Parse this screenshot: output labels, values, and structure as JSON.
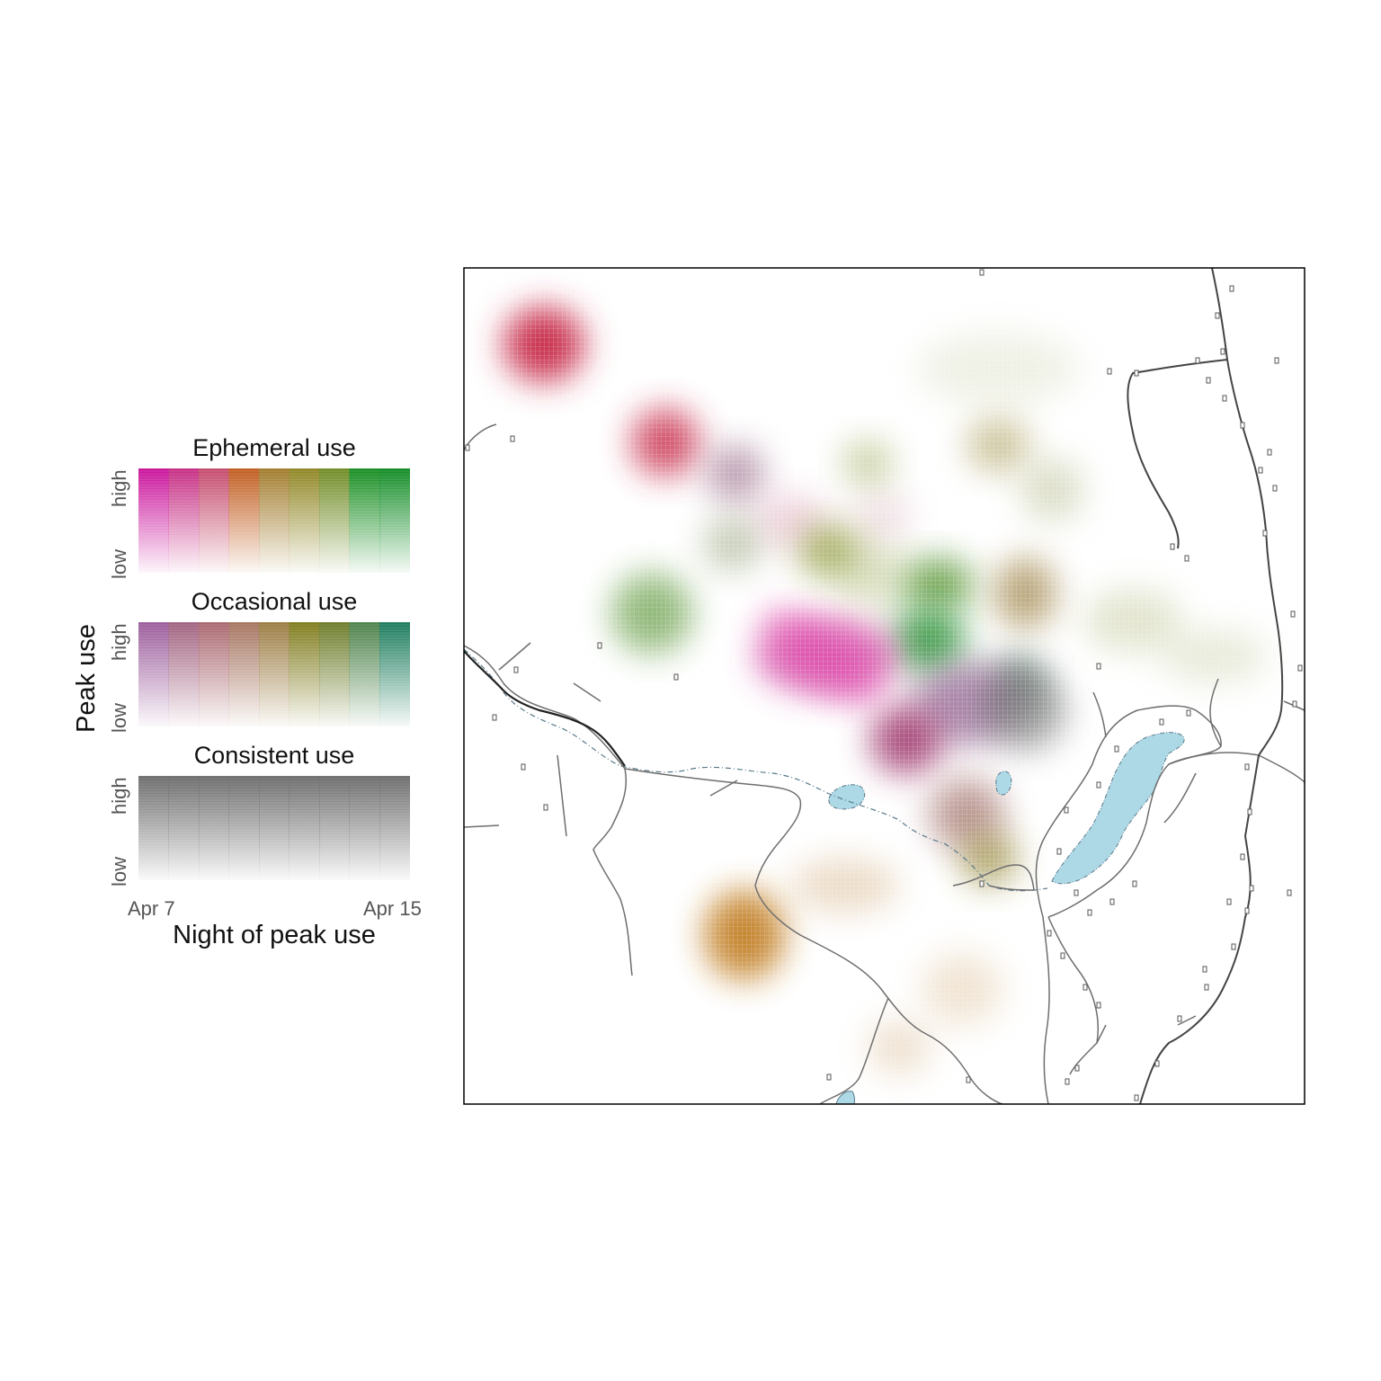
{
  "legend": {
    "y_axis_title": "Peak use",
    "x_axis_title": "Night of peak use",
    "x_ticks": [
      "Apr 7",
      "Apr 15"
    ],
    "y_ticks": [
      "low",
      "high"
    ],
    "panels": [
      {
        "title": "Ephemeral use",
        "top_colors": [
          "#c9109a",
          "#c52b82",
          "#c4486a",
          "#c05a1c",
          "#a07a2a",
          "#8e8420",
          "#6e8a22",
          "#148c1e",
          "#0e8a22"
        ]
      },
      {
        "title": "Occasional use",
        "top_colors": [
          "#9a5a9a",
          "#a0607e",
          "#a8666e",
          "#a4725e",
          "#9a7a40",
          "#7e7a1a",
          "#6a7a26",
          "#4a8048",
          "#187a5a"
        ]
      },
      {
        "title": "Consistent use",
        "top_colors": [
          "#6a6a6a",
          "#6a6a6a",
          "#6a6a6a",
          "#6a6a6a",
          "#6a6a6a",
          "#6a6a6a",
          "#6a6a6a",
          "#6a6a6a",
          "#6a6a6a"
        ]
      }
    ]
  },
  "map": {
    "water_color": "#add8e6",
    "road_color": "#6e6e6e",
    "hotspots": [
      {
        "color": "#c93050",
        "intensity": 1.0
      },
      {
        "color": "#c93050",
        "intensity": 0.85
      },
      {
        "color": "#8c5a7a",
        "intensity": 0.6
      },
      {
        "color": "#d080a0",
        "intensity": 0.35
      },
      {
        "color": "#cc9aa8",
        "intensity": 0.3
      },
      {
        "color": "#7a8a5a",
        "intensity": 0.45
      },
      {
        "color": "#7e8a1a",
        "intensity": 0.65
      },
      {
        "color": "#8a9a3a",
        "intensity": 0.45
      },
      {
        "color": "#4a8a20",
        "intensity": 0.75
      },
      {
        "color": "#1a8a2a",
        "intensity": 0.8
      },
      {
        "color": "#8a6a20",
        "intensity": 0.6
      },
      {
        "color": "#5a7a6a",
        "intensity": 0.7
      },
      {
        "color": "#d040a0",
        "intensity": 0.75
      },
      {
        "color": "#8a5a8a",
        "intensity": 0.7
      },
      {
        "color": "#6a6a6a",
        "intensity": 0.6
      },
      {
        "color": "#a03a70",
        "intensity": 0.9
      },
      {
        "color": "#a0706a",
        "intensity": 0.7
      },
      {
        "color": "#8a7a20",
        "intensity": 0.65
      },
      {
        "color": "#c07a1a",
        "intensity": 0.9
      },
      {
        "color": "#c89a60",
        "intensity": 0.35
      },
      {
        "color": "#c89a60",
        "intensity": 0.3
      },
      {
        "color": "#d0a870",
        "intensity": 0.3
      },
      {
        "color": "#4a8a20",
        "intensity": 0.6
      },
      {
        "color": "#8a9a3a",
        "intensity": 0.3
      },
      {
        "color": "#9a8a3a",
        "intensity": 0.5
      },
      {
        "color": "#9aa060",
        "intensity": 0.35
      },
      {
        "color": "#a0a860",
        "intensity": 0.3
      },
      {
        "color": "#a8b070",
        "intensity": 0.25
      },
      {
        "color": "#b0b880",
        "intensity": 0.2
      }
    ]
  }
}
